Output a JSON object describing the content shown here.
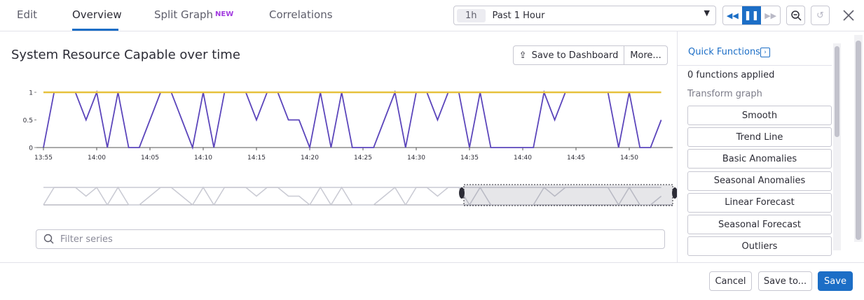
{
  "tabs": [
    "Edit",
    "Overview",
    "Split Graph",
    "Correlations"
  ],
  "tab_badge": "NEW",
  "time_selector": {
    "short": "1h",
    "label": "Past 1 Hour"
  },
  "header": {
    "title": "System Resource Capable over time",
    "buttons": [
      "Save to Dashboard",
      "More..."
    ]
  },
  "chart_data": {
    "type": "line",
    "x": [
      "13:55",
      "13:56",
      "13:57",
      "13:58",
      "13:59",
      "14:00",
      "14:01",
      "14:02",
      "14:03",
      "14:04",
      "14:05",
      "14:06",
      "14:07",
      "14:08",
      "14:09",
      "14:10",
      "14:11",
      "14:12",
      "14:13",
      "14:14",
      "14:15",
      "14:16",
      "14:17",
      "14:18",
      "14:19",
      "14:20",
      "14:21",
      "14:22",
      "14:23",
      "14:24",
      "14:25",
      "14:26",
      "14:27",
      "14:28",
      "14:29",
      "14:30",
      "14:31",
      "14:32",
      "14:33",
      "14:34",
      "14:35",
      "14:36",
      "14:37",
      "14:38",
      "14:39",
      "14:40",
      "14:41",
      "14:42",
      "14:43",
      "14:44",
      "14:45",
      "14:46",
      "14:47",
      "14:48",
      "14:49",
      "14:50",
      "14:51",
      "14:52",
      "14:53"
    ],
    "series": [
      {
        "color": "#e6c13c",
        "values": [
          1,
          1,
          1,
          1,
          1,
          1,
          1,
          1,
          1,
          1,
          1,
          1,
          1,
          1,
          1,
          1,
          1,
          1,
          1,
          1,
          1,
          1,
          1,
          1,
          1,
          1,
          1,
          1,
          1,
          1,
          1,
          1,
          1,
          1,
          1,
          1,
          1,
          1,
          1,
          1,
          1,
          1,
          1,
          1,
          1,
          1,
          1,
          1,
          1,
          1,
          1,
          1,
          1,
          1,
          1,
          1,
          1,
          1,
          1
        ]
      },
      {
        "color": "#5b45bb",
        "values": [
          0,
          1,
          1,
          1,
          0.5,
          1,
          0,
          1,
          0,
          0,
          0.5,
          1,
          1,
          0.5,
          0,
          1,
          0,
          1,
          1,
          1,
          0.5,
          1,
          1,
          0.5,
          0.5,
          0,
          1,
          0,
          1,
          0,
          0,
          0,
          0.5,
          1,
          0,
          1,
          1,
          0.5,
          1,
          1,
          0,
          1,
          0,
          0,
          0,
          0,
          0,
          1,
          0.5,
          1,
          1,
          1,
          1,
          1,
          0,
          1,
          0,
          0,
          0.5
        ]
      }
    ],
    "ylim": [
      0,
      1
    ],
    "yticks": [
      0,
      0.5,
      1
    ],
    "xticks": [
      "13:55",
      "14:00",
      "14:05",
      "14:10",
      "14:15",
      "14:20",
      "14:25",
      "14:30",
      "14:35",
      "14:40",
      "14:45",
      "14:50"
    ]
  },
  "filter": {
    "placeholder": "Filter series"
  },
  "quick_functions": {
    "title": "Quick Functions",
    "status": "0 functions applied",
    "section": "Transform graph",
    "items": [
      "Smooth",
      "Trend Line",
      "Basic Anomalies",
      "Seasonal Anomalies",
      "Linear Forecast",
      "Seasonal Forecast",
      "Outliers"
    ]
  },
  "footer": {
    "buttons": [
      "Cancel",
      "Save to...",
      "Save"
    ]
  }
}
